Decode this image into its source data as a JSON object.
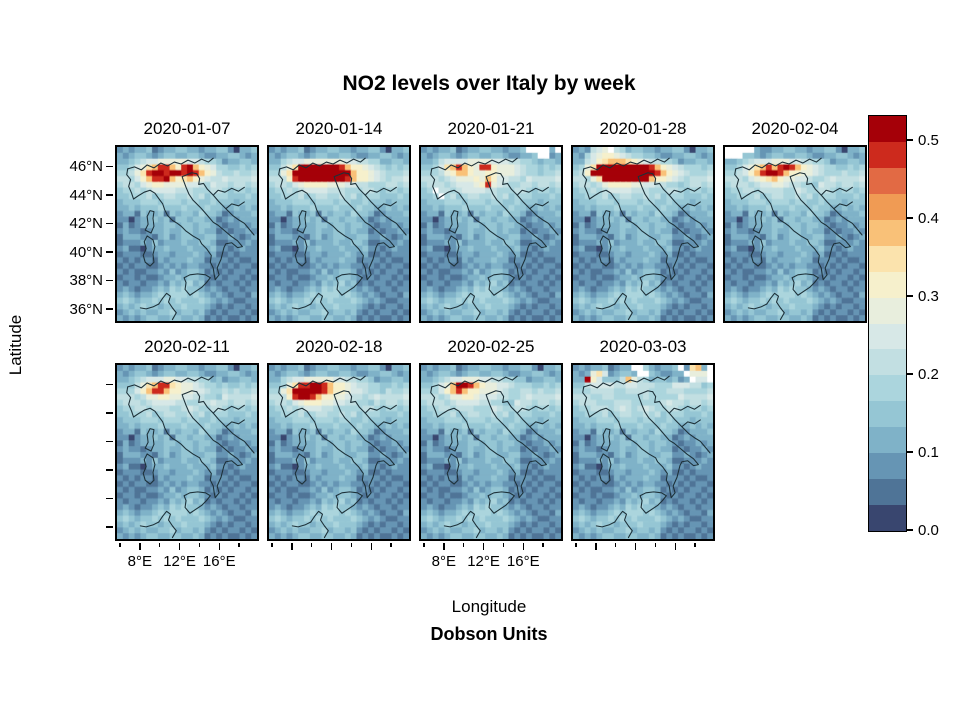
{
  "chart_data": {
    "type": "heatmap",
    "title": "NO2 levels over Italy by week",
    "xlabel": "Longitude",
    "ylabel": "Latitude",
    "legend_label": "Dobson Units",
    "facet_dates": [
      "2020-01-07",
      "2020-01-14",
      "2020-01-21",
      "2020-01-28",
      "2020-02-04",
      "2020-02-11",
      "2020-02-18",
      "2020-02-25",
      "2020-03-03"
    ],
    "lon_range_deg_east": [
      5.5,
      20
    ],
    "lat_range_deg_north": [
      35,
      47.5
    ],
    "x_tick_lons": [
      6,
      8,
      10,
      12,
      14,
      16,
      18
    ],
    "x_labeled_lons": [
      8,
      12,
      16
    ],
    "x_tick_labels": [
      "8°E",
      "12°E",
      "16°E"
    ],
    "y_tick_lats": [
      46,
      44,
      42,
      40,
      38,
      36
    ],
    "y_tick_labels": [
      "46°N",
      "44°N",
      "42°N",
      "40°N",
      "38°N",
      "36°N"
    ],
    "value_range": [
      0.0,
      0.53
    ],
    "colorbar_ticks": [
      0.0,
      0.1,
      0.2,
      0.3,
      0.4,
      0.5
    ],
    "colorbar_tick_labels": [
      "0.0",
      "0.1",
      "0.2",
      "0.3",
      "0.4",
      "0.5"
    ],
    "n_color_bands": 16,
    "palette_low_to_high": [
      "#39466f",
      "#4f7497",
      "#6695b4",
      "#7fb2c8",
      "#95c6d4",
      "#abd5dd",
      "#c2dfe2",
      "#d7e8e7",
      "#e8eedd",
      "#f6f0cc",
      "#fbe3ad",
      "#f9c178",
      "#f09b54",
      "#e26a44",
      "#cd2a1d",
      "#a50008"
    ],
    "missing_color": "#ffffff",
    "coast_color": "#1d3038",
    "grid_size": {
      "cols": 24,
      "rows": 30
    },
    "base_grid": [
      "232334123344332334420334",
      "323443234433443223344323",
      "334334445443534434233443",
      "445445554565445645544545",
      "556566656676566766656556",
      "666676667677676776766667",
      "566667756766676676656656",
      "455666567656765566545545",
      "445556456655656455544454",
      "344455545554554454443444",
      "334344454445444544334343",
      "233143341434435443123334",
      "220233434144344331232333",
      "131233334434434432122323",
      "232212334334434331212232",
      "133322134234433442232123",
      "122232423334334431122232",
      "231102334333433342212322",
      "122211233233343231121222",
      "212122132333433122212112",
      "121221123232332212121221",
      "212112232423443121212212",
      "122121123343443212122121",
      "212212232434534121221212",
      "232122343545443232122122",
      "343233454555454323212213",
      "454344545454445432321122",
      "343454434445444321212212",
      "234343344534434212122121",
      "323234433443343121211212"
    ],
    "panels": [
      {
        "date": "2020-01-07",
        "row": 0,
        "col": 0,
        "overlay_start": 2,
        "overlay": [
          "...56778888877655......",
          "..578abeeb9efb9875......",
          "..68aeffeffefeb9865.....",
          "..579beefb9ab98766......",
          "...5789988887765........",
          "....56777766655........."
        ]
      },
      {
        "date": "2020-01-14",
        "row": 0,
        "col": 1,
        "overlay_start": 2,
        "overlay": [
          "..56778888888776655.....",
          "..68afffffffeb998765....",
          ".58affffffffffb9987655..",
          "..69effffffffeb998765...",
          "...5789999888776655.....",
          "....567777666555........"
        ]
      },
      {
        "date": "2020-01-21",
        "row": 0,
        "col": 2,
        "overlay_start": 0,
        "overlay": [
          "..................wwww.w",
          "....................ww..",
          "..467777888877766554....",
          "..57abeb98ee98887655....",
          "..5689bb9889988876554...",
          "...56788898b977665......",
          "....5677789e87655.......",
          "..w..567777665..........",
          "...w...................."
        ]
      },
      {
        "date": "2020-01-28",
        "row": 0,
        "col": 3,
        "overlay_start": 0,
        "overlay": [
          "...678w65...............",
          "..5789987655............",
          "..679abbba98766554......",
          ".58afffffffffeb987655...",
          ".69fffffffffffeb98765...",
          "..58affffffffb998765....",
          "...5689999887766554.....",
          "....56777766655........."
        ]
      },
      {
        "date": "2020-02-04",
        "row": 0,
        "col": 4,
        "overlay_start": 0,
        "overlay": [
          "wwwww32.................",
          "www4....................",
          "...56777888776655.......",
          "..578abebefeb9876554....",
          "..679beffeb99887655.....",
          "...5789ab98877655.......",
          "....567788766554........",
          ".....5666655............"
        ]
      },
      {
        "date": "2020-02-11",
        "row": 1,
        "col": 0,
        "overlay_start": 2,
        "overlay": [
          "...5677788776655........",
          "..468abeea98876554......",
          "..579beeb998877655......",
          "...568899887766554......",
          "....5677776655..........",
          ".....566655............."
        ]
      },
      {
        "date": "2020-02-18",
        "row": 1,
        "col": 1,
        "overlay_start": 2,
        "overlay": [
          "..5677888887766554......",
          "..58aeeffeb99876655.....",
          ".58afffffeb998776554....",
          "..69effeb99887665.......",
          "...578999887766554......",
          "....5677766555.........."
        ]
      },
      {
        "date": "2020-02-25",
        "row": 1,
        "col": 2,
        "overlay_start": 2,
        "overlay": [
          "...567788877665544......",
          "..578bffeb98877655......",
          "..579beb998887655.......",
          "...56889987776655.......",
          "....567777665544........",
          ".....5666555............"
        ]
      },
      {
        "date": "2020-03-03",
        "row": 1,
        "col": 3,
        "overlay_start": 0,
        "overlay": [
          "..........ww5.....w.ab.w",
          "...8a7.....ww......w888w",
          "..f97...6b86........w77w",
          "..67777667766655577766..",
          "..5666655666655566655...",
          "...556655555655555......",
          "....55566655555........."
        ]
      }
    ]
  }
}
